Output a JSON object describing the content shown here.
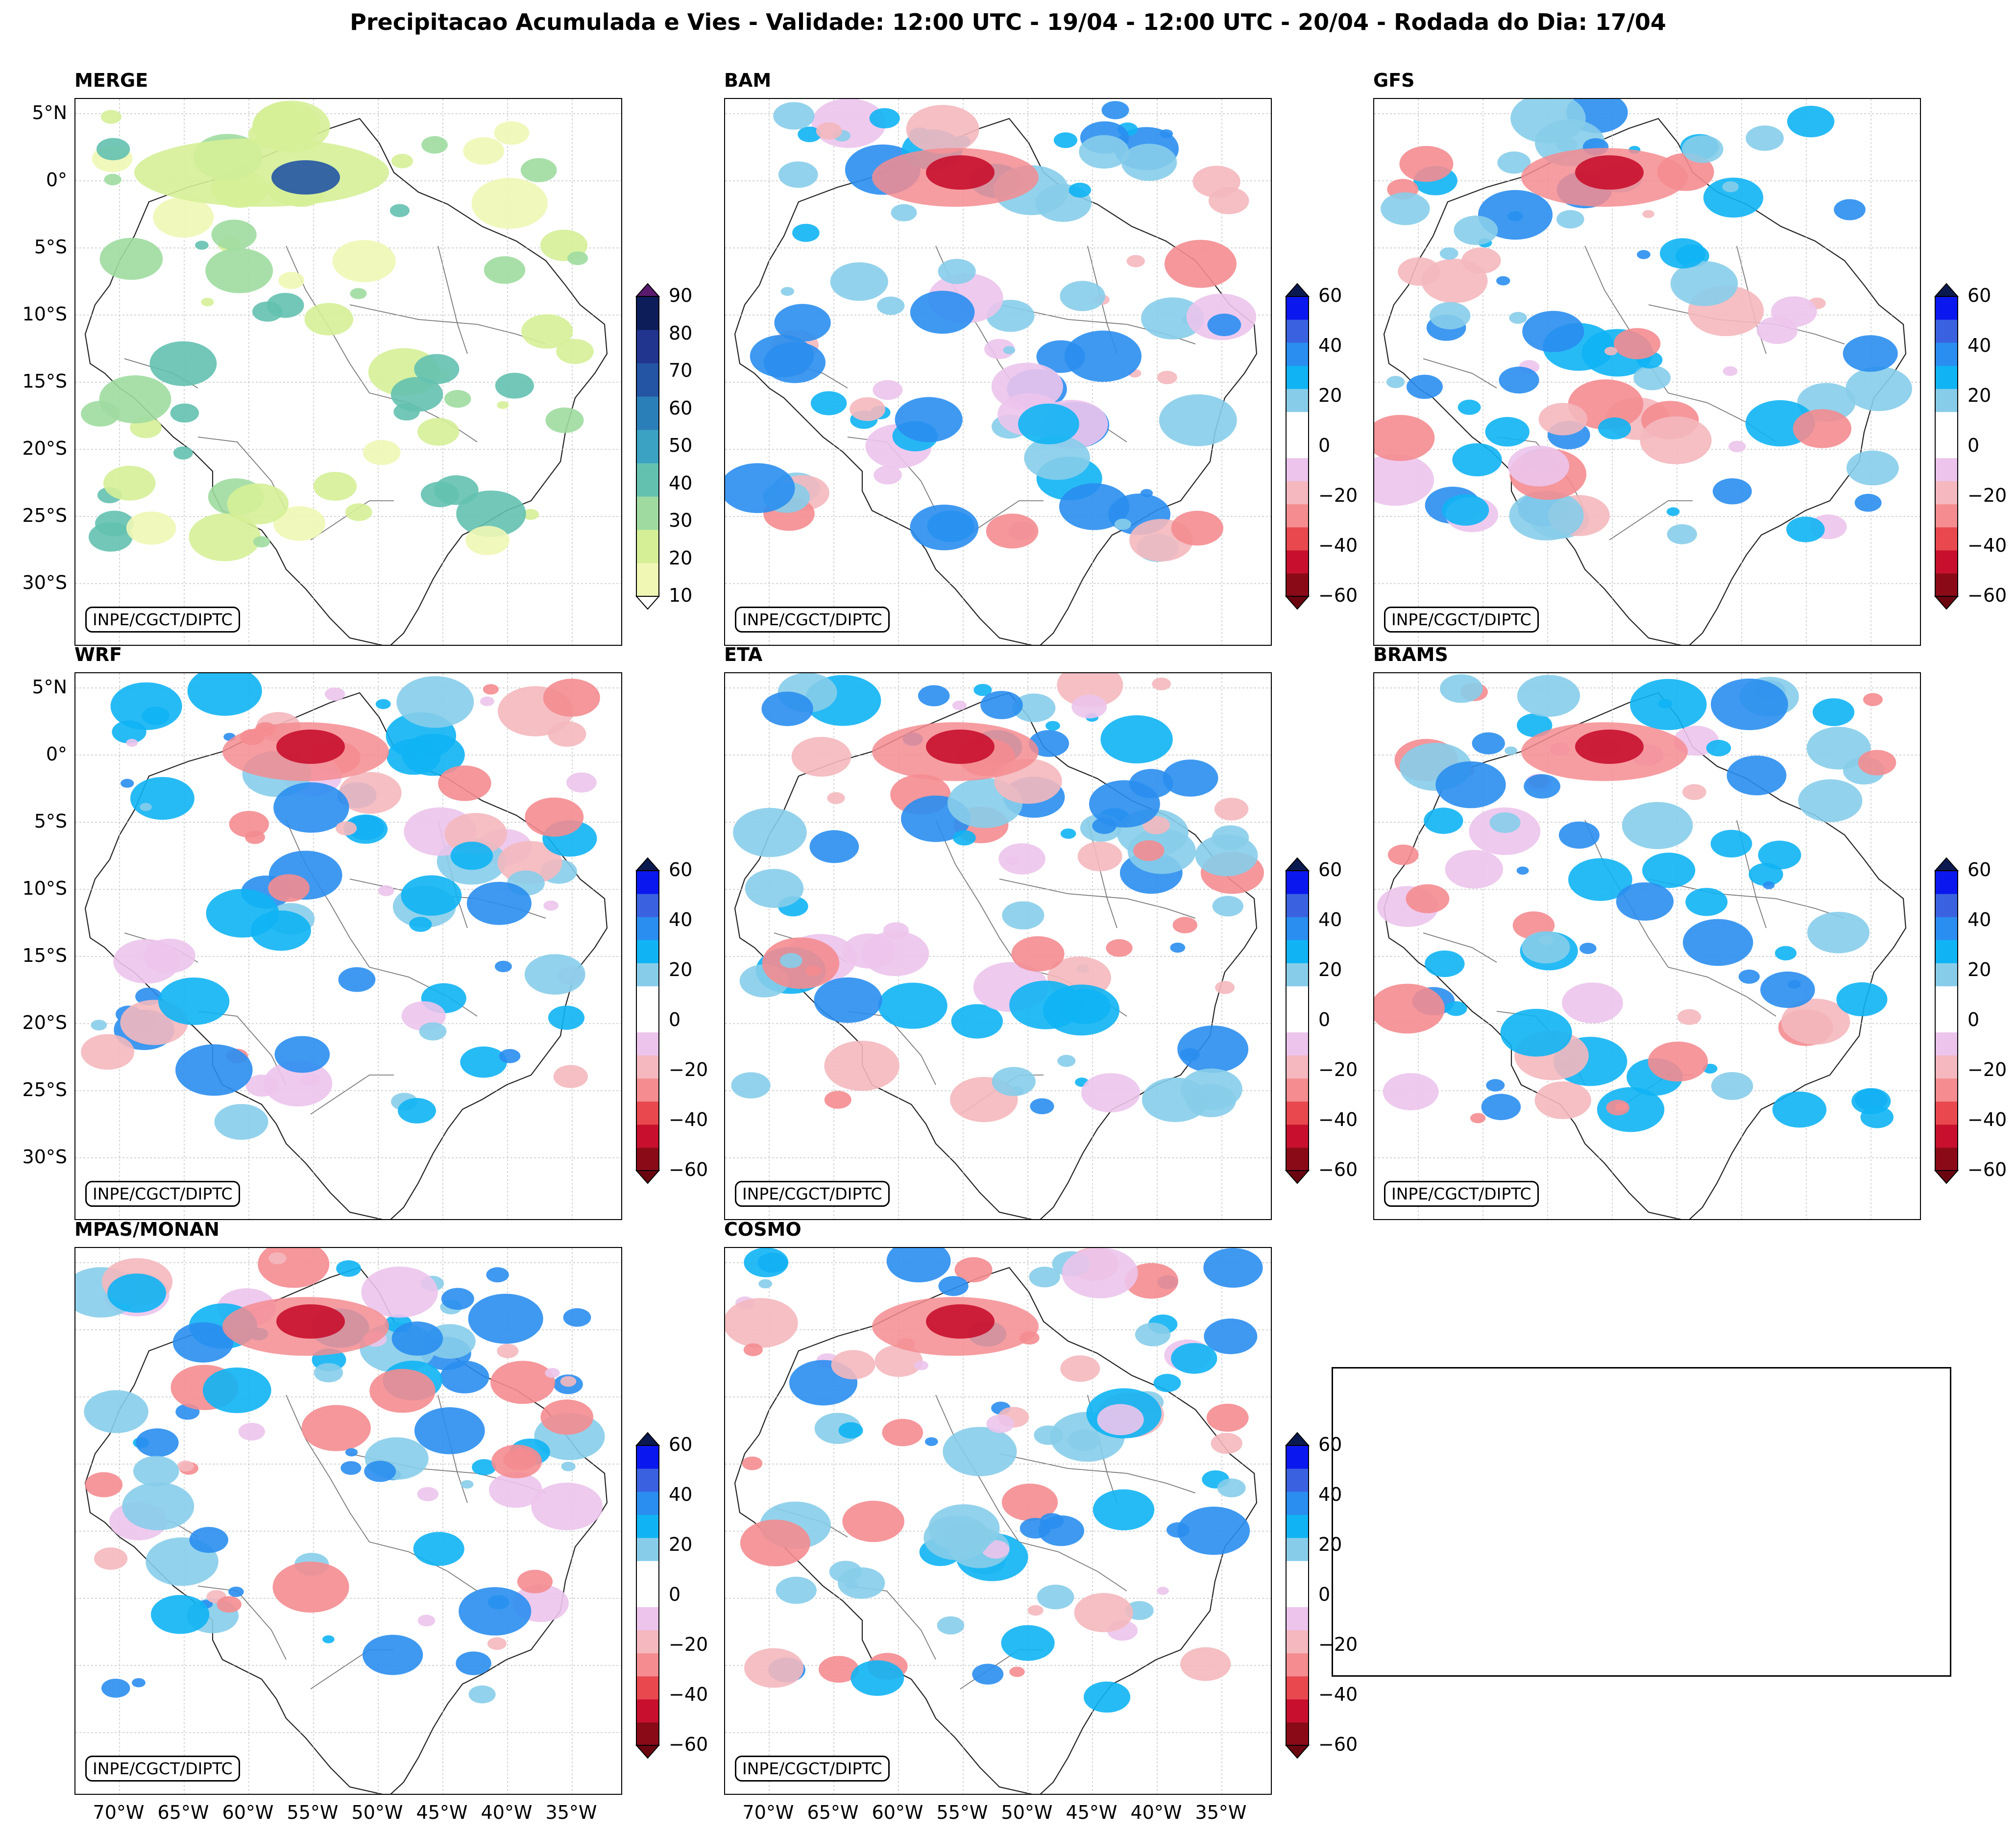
{
  "title": "Precipitacao Acumulada e Vies - Validade: 12:00 UTC - 19/04 - 12:00 UTC - 20/04 - Rodada do Dia: 17/04",
  "credit": "INPE/CGCT/DIPTC",
  "lat_labels": [
    "5°N",
    "0°",
    "5°S",
    "10°S",
    "15°S",
    "20°S",
    "25°S",
    "30°S"
  ],
  "lon_labels": [
    "70°W",
    "65°W",
    "60°W",
    "55°W",
    "50°W",
    "45°W",
    "40°W",
    "35°W"
  ],
  "colorbars": {
    "accum": {
      "ticks": [
        "90",
        "80",
        "70",
        "60",
        "50",
        "40",
        "30",
        "20",
        "10"
      ],
      "colors": [
        "#f0f7b5",
        "#d5ef97",
        "#9fdba0",
        "#63c1b0",
        "#3ba2c3",
        "#2b7fb8",
        "#2455a4",
        "#22358e",
        "#0d1d5a"
      ],
      "over": "#5a1a6e",
      "under": "#ffffff"
    },
    "bias": {
      "ticks": [
        "60",
        "40",
        "20",
        "0",
        "−20",
        "−40",
        "−60"
      ],
      "colors": [
        "#8b0a18",
        "#c8102e",
        "#e8484e",
        "#f48c90",
        "#f4b8be",
        "#ecc4ec",
        "#ffffff",
        "#ffffff",
        "#87cdea",
        "#10b4f4",
        "#2a8ef0",
        "#3a62e0",
        "#0a18ef"
      ],
      "over": "#0a1a50",
      "under": "#6a0510"
    }
  },
  "panels": [
    {
      "name": "MERGE",
      "colorbar": "accum",
      "show_lat": true,
      "show_lon": false
    },
    {
      "name": "BAM",
      "colorbar": "bias",
      "show_lat": false,
      "show_lon": false
    },
    {
      "name": "GFS",
      "colorbar": "bias",
      "show_lat": false,
      "show_lon": false
    },
    {
      "name": "WRF",
      "colorbar": "bias",
      "show_lat": true,
      "show_lon": false
    },
    {
      "name": "ETA",
      "colorbar": "bias",
      "show_lat": false,
      "show_lon": false
    },
    {
      "name": "BRAMS",
      "colorbar": "bias",
      "show_lat": false,
      "show_lon": false
    },
    {
      "name": "MPAS/MONAN",
      "colorbar": "bias",
      "show_lat": false,
      "show_lon": true
    },
    {
      "name": "COSMO",
      "colorbar": "bias",
      "show_lat": false,
      "show_lon": true
    }
  ]
}
